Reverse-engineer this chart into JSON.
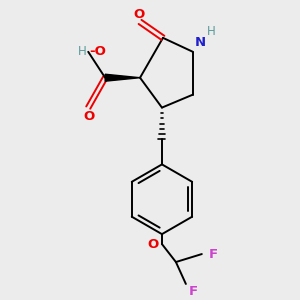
{
  "background_color": "#ececec",
  "bond_color": "#000000",
  "atom_colors": {
    "O": "#ee0000",
    "N": "#2020cc",
    "F": "#cc44cc",
    "H": "#5a9a9a",
    "C": "#000000"
  },
  "figsize": [
    3.0,
    3.0
  ],
  "dpi": 100
}
